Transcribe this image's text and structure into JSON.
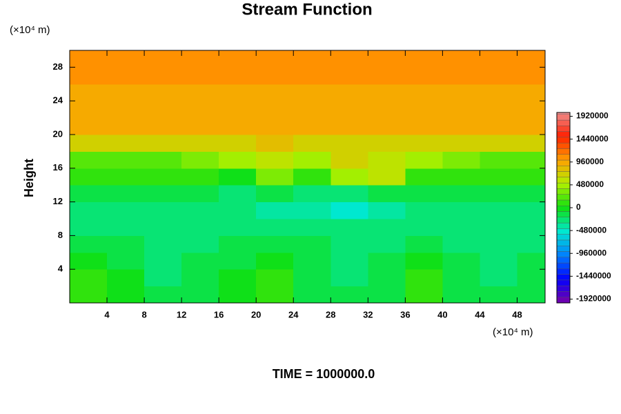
{
  "chart_data": {
    "type": "contour",
    "title": "Stream Function",
    "y_unit": "(×10⁴ m)",
    "x_unit": "(×10⁴ m)",
    "ylabel": "Height",
    "footer": "TIME = 1000000.0",
    "xlim": [
      0,
      51
    ],
    "ylim": [
      0,
      30
    ],
    "xticks": [
      4,
      8,
      12,
      16,
      20,
      24,
      28,
      32,
      36,
      40,
      44,
      48
    ],
    "yticks": [
      4,
      8,
      12,
      16,
      20,
      24,
      28
    ],
    "x": [
      2,
      6,
      10,
      14,
      18,
      22,
      26,
      30,
      34,
      38,
      42,
      46,
      50
    ],
    "y": [
      1,
      3,
      5,
      7,
      9,
      11,
      13,
      15,
      17,
      19,
      21,
      23,
      25,
      27,
      29
    ],
    "z": [
      [
        50000,
        -50000,
        -200000,
        -150000,
        -50000,
        50000,
        -100000,
        -200000,
        -150000,
        50000,
        -100000,
        -200000,
        -150000
      ],
      [
        50000,
        -50000,
        -250000,
        -150000,
        -50000,
        50000,
        -100000,
        -250000,
        -150000,
        50000,
        -150000,
        -250000,
        -150000
      ],
      [
        -50000,
        -100000,
        -300000,
        -200000,
        -100000,
        -50000,
        -150000,
        -300000,
        -200000,
        -50000,
        -200000,
        -300000,
        -200000
      ],
      [
        -150000,
        -200000,
        -300000,
        -250000,
        -200000,
        -150000,
        -200000,
        -300000,
        -250000,
        -200000,
        -250000,
        -300000,
        -250000
      ],
      [
        -300000,
        -300000,
        -300000,
        -300000,
        -300000,
        -300000,
        -300000,
        -300000,
        -300000,
        -300000,
        -300000,
        -300000,
        -300000
      ],
      [
        -250000,
        -250000,
        -300000,
        -300000,
        -300000,
        -350000,
        -350000,
        -450000,
        -350000,
        -300000,
        -300000,
        -250000,
        -250000
      ],
      [
        -150000,
        -150000,
        -150000,
        -200000,
        -300000,
        -150000,
        -250000,
        -250000,
        -100000,
        -100000,
        -150000,
        -150000,
        -150000
      ],
      [
        50000,
        100000,
        100000,
        50000,
        -50000,
        300000,
        100000,
        450000,
        550000,
        100000,
        50000,
        50000,
        50000
      ],
      [
        200000,
        250000,
        250000,
        300000,
        400000,
        600000,
        500000,
        650000,
        600000,
        400000,
        300000,
        250000,
        250000
      ],
      [
        750000,
        700000,
        700000,
        700000,
        750000,
        800000,
        700000,
        750000,
        750000,
        750000,
        700000,
        700000,
        750000
      ],
      [
        950000,
        950000,
        950000,
        950000,
        950000,
        950000,
        950000,
        950000,
        950000,
        950000,
        950000,
        950000,
        950000
      ],
      [
        920000,
        950000,
        920000,
        950000,
        920000,
        950000,
        920000,
        950000,
        920000,
        950000,
        920000,
        950000,
        920000
      ],
      [
        950000,
        950000,
        950000,
        950000,
        950000,
        950000,
        950000,
        950000,
        950000,
        950000,
        950000,
        950000,
        950000
      ],
      [
        1000000,
        1000000,
        1000000,
        1000000,
        1000000,
        1000000,
        1000000,
        1000000,
        1000000,
        1000000,
        1000000,
        1000000,
        1000000
      ],
      [
        1000000,
        1000000,
        1000000,
        1000000,
        1000000,
        1000000,
        1000000,
        1000000,
        1000000,
        1000000,
        1000000,
        1000000,
        1000000
      ]
    ],
    "clim": [
      -2000000,
      2000000
    ],
    "level_step": 120000,
    "colorscale": [
      "#7a00a8",
      "#0000ff",
      "#0080ff",
      "#00e8d0",
      "#10e010",
      "#b0f000",
      "#ffa000",
      "#ff2000",
      "#f09090"
    ],
    "cticks": [
      1920000,
      1440000,
      960000,
      480000,
      0,
      -480000,
      -960000,
      -1440000,
      -1920000
    ]
  }
}
